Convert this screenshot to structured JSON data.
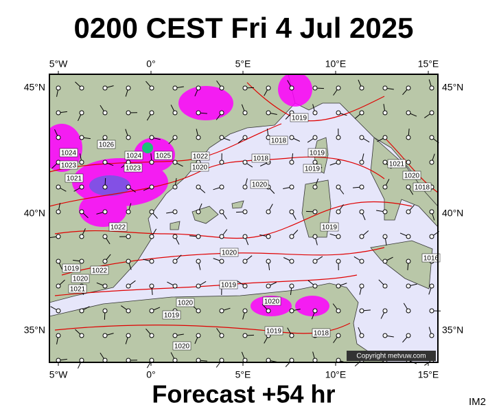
{
  "header": {
    "title": "0200 CEST Fri 4 Jul 2025"
  },
  "axes": {
    "lon_labels": [
      "5°W",
      "0°",
      "5°E",
      "10°E",
      "15°E"
    ],
    "lat_labels": [
      "45°N",
      "40°N",
      "35°N"
    ]
  },
  "isobar_labels": [
    "1026",
    "1024",
    "1024",
    "1025",
    "1022",
    "1023",
    "1023",
    "1020",
    "1021",
    "1018",
    "1018",
    "1019",
    "1020",
    "1019",
    "1019",
    "1019",
    "1022",
    "1020",
    "1019",
    "1019",
    "1020",
    "1022",
    "1021",
    "1020",
    "1019",
    "1018",
    "1020",
    "1019",
    "1020",
    "1021",
    "1020",
    "1018",
    "1016"
  ],
  "copyright": "Copyright metvuw.com",
  "footer": {
    "forecast": "Forecast +54 hr",
    "image_id": "IM2"
  }
}
